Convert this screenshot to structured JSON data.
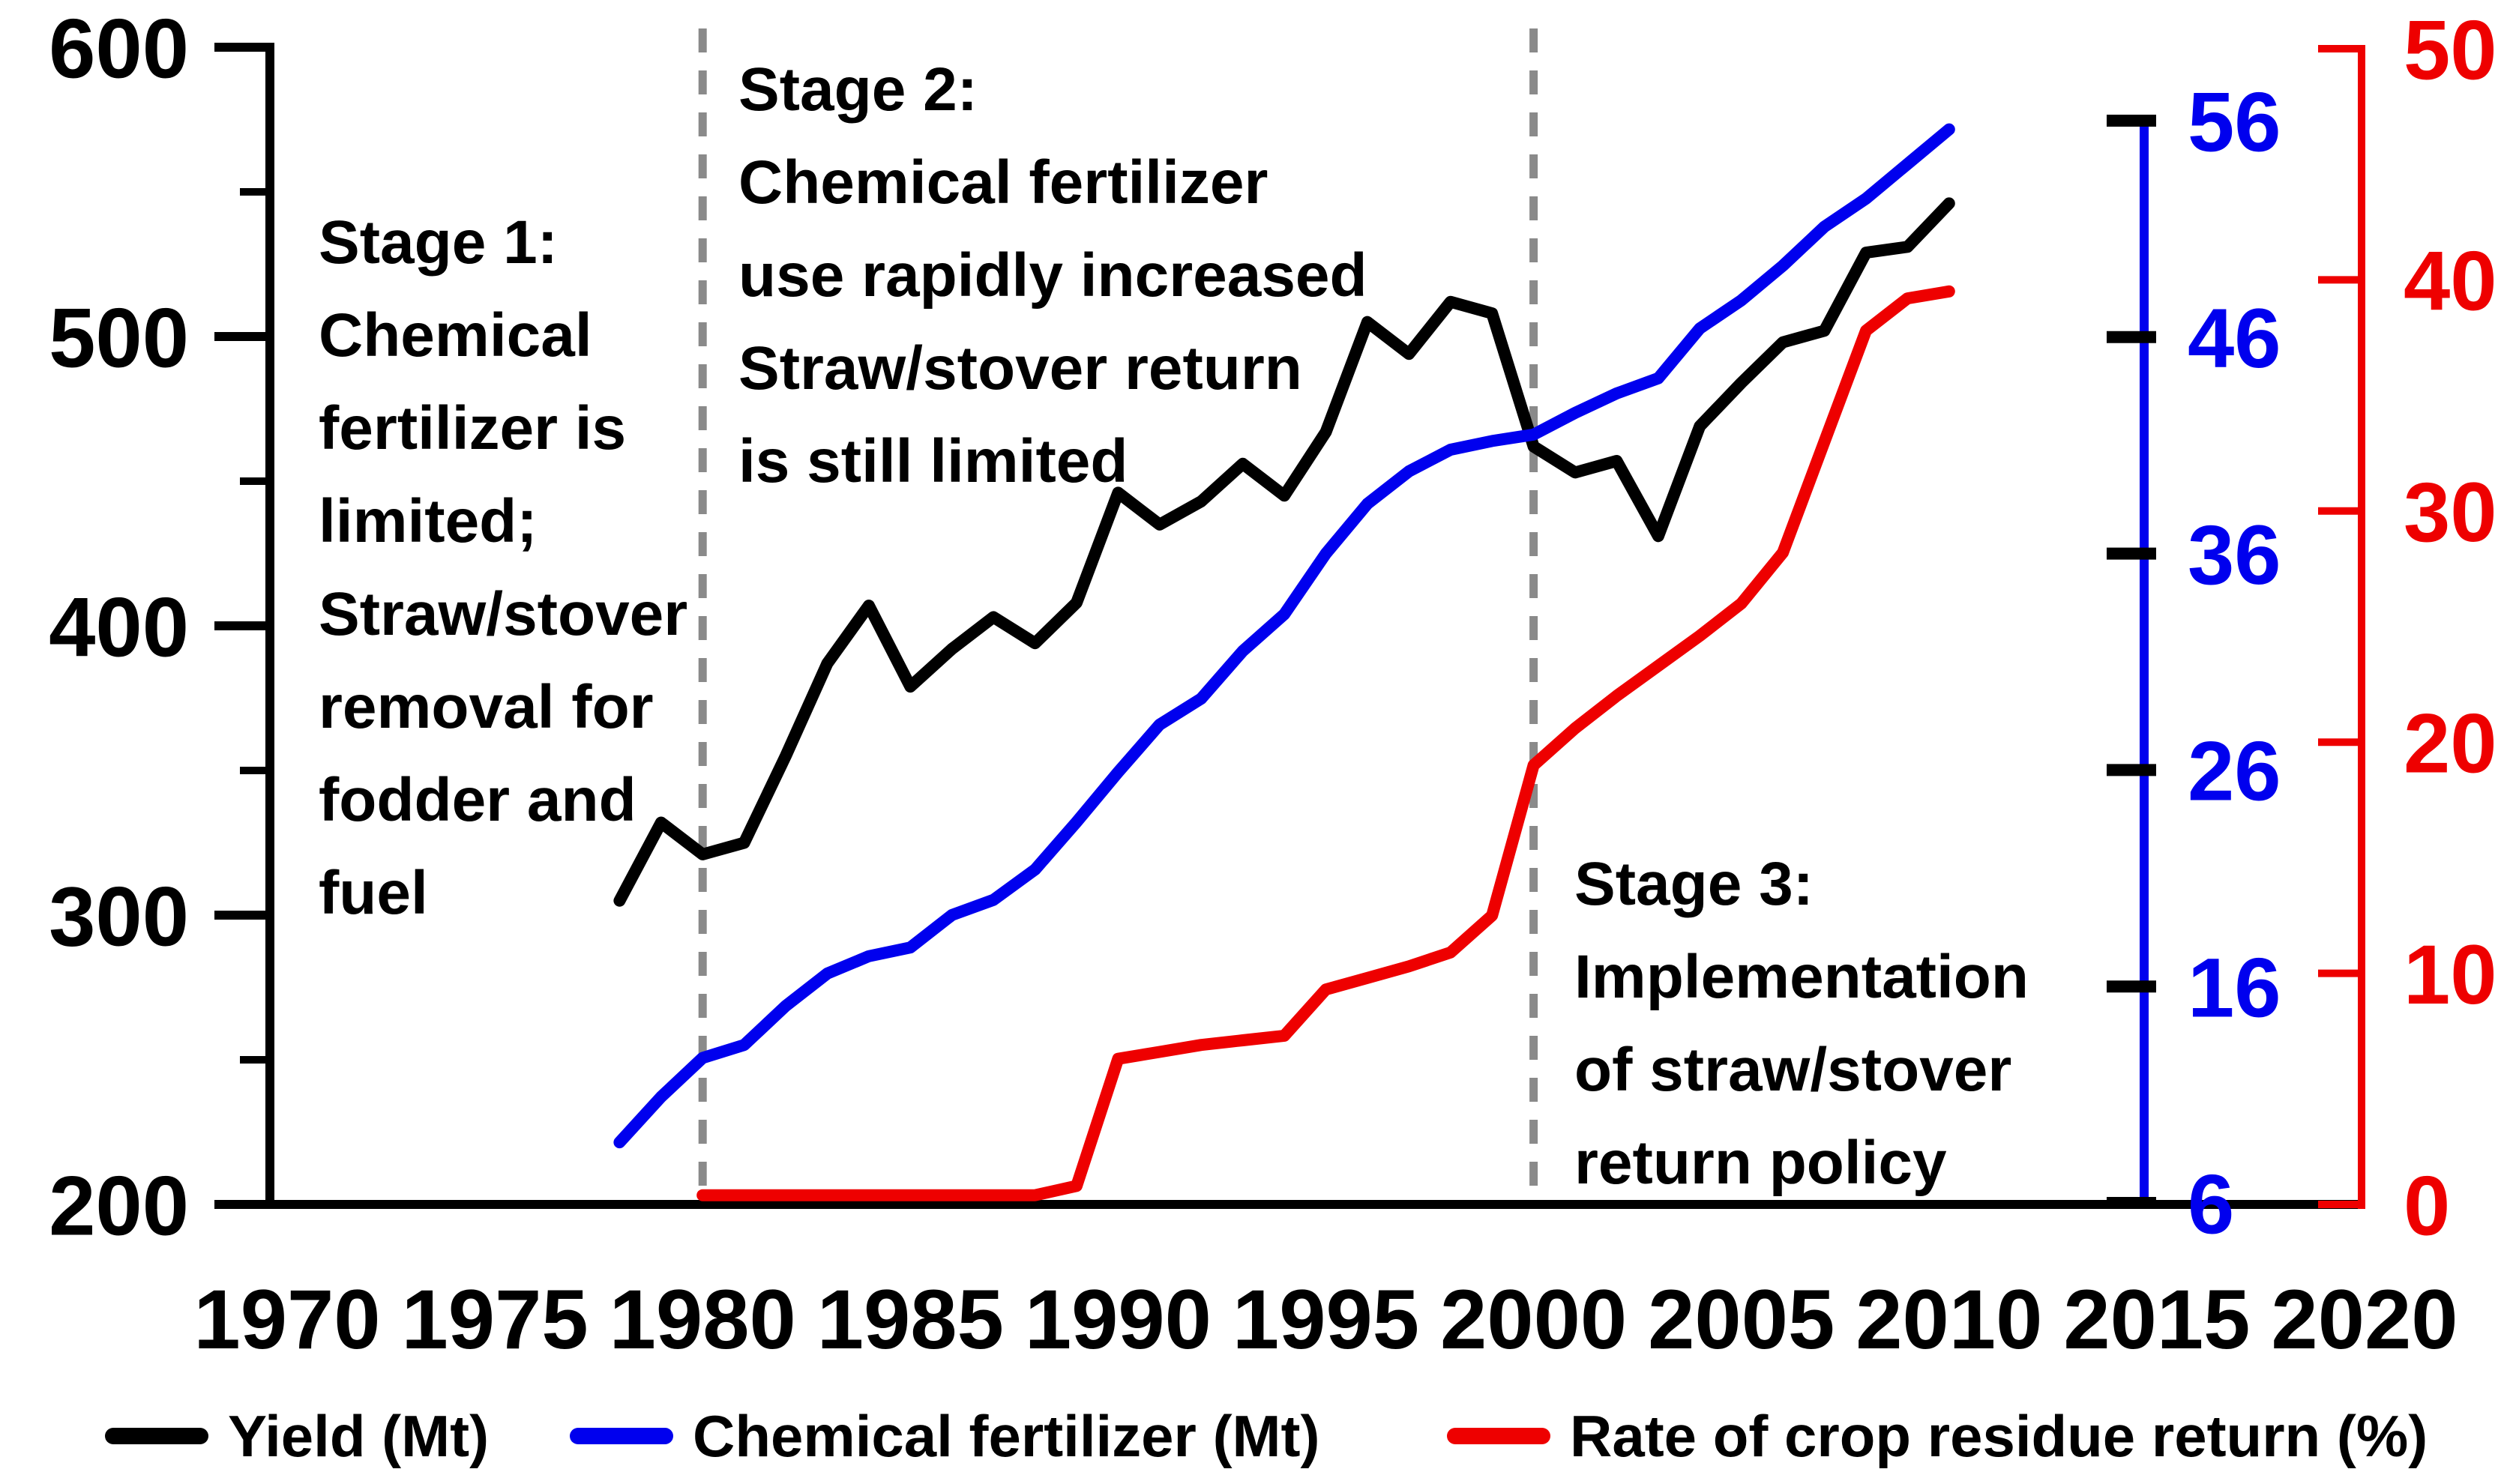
{
  "chart_data": {
    "type": "line",
    "title": "",
    "grid": false,
    "legend_position": "bottom",
    "stage_boundaries": [
      1980,
      2000
    ],
    "stage_line_color": "#8A8A8A",
    "axes": {
      "x": {
        "range": [
          1970,
          2020
        ],
        "ticks": [
          1970,
          1975,
          1980,
          1985,
          1990,
          1995,
          2000,
          2005,
          2010,
          2015,
          2020
        ],
        "color": "#000000"
      },
      "left": {
        "range": [
          200,
          600
        ],
        "ticks": [
          200,
          300,
          400,
          500,
          600
        ],
        "minor_ticks": [
          250,
          350,
          450,
          550
        ],
        "color": "#000000"
      },
      "blue": {
        "range": [
          6,
          56
        ],
        "ticks": [
          6,
          16,
          26,
          36,
          46,
          56
        ],
        "color": "#0000EE",
        "tick_color": "#000000",
        "position_year": 2015
      },
      "red": {
        "range": [
          0,
          50
        ],
        "ticks": [
          0,
          10,
          20,
          30,
          40,
          50
        ],
        "color": "#EE0000",
        "position_year": 2020
      }
    },
    "series": [
      {
        "name": "Yield (Mt)",
        "axis": "left",
        "color": "#000000",
        "x": [
          1978,
          1979,
          1980,
          1981,
          1982,
          1983,
          1984,
          1985,
          1986,
          1987,
          1988,
          1989,
          1990,
          1991,
          1992,
          1993,
          1994,
          1995,
          1996,
          1997,
          1998,
          1999,
          2000,
          2001,
          2002,
          2003,
          2004,
          2005,
          2006,
          2007,
          2008,
          2009,
          2010
        ],
        "values": [
          305,
          332,
          321,
          325,
          355,
          387,
          407,
          379,
          392,
          403,
          394,
          408,
          446,
          435,
          443,
          456,
          445,
          467,
          505,
          494,
          512,
          508,
          462,
          453,
          457,
          431,
          469,
          484,
          498,
          502,
          529,
          531,
          546
        ]
      },
      {
        "name": "Chemical fertilizer (Mt)",
        "axis": "blue",
        "color": "#0000EE",
        "x": [
          1978,
          1979,
          1980,
          1981,
          1982,
          1983,
          1984,
          1985,
          1986,
          1987,
          1988,
          1989,
          1990,
          1991,
          1992,
          1993,
          1994,
          1995,
          1996,
          1997,
          1998,
          1999,
          2000,
          2001,
          2002,
          2003,
          2004,
          2005,
          2006,
          2007,
          2008,
          2009,
          2010
        ],
        "values": [
          8.8,
          10.9,
          12.7,
          13.3,
          15.1,
          16.6,
          17.4,
          17.8,
          19.3,
          20,
          21.4,
          23.6,
          25.9,
          28.1,
          29.3,
          31.5,
          33.2,
          36,
          38.3,
          39.8,
          40.8,
          41.2,
          41.5,
          42.5,
          43.4,
          44.1,
          46.4,
          47.7,
          49.3,
          51.1,
          52.4,
          54,
          55.6
        ]
      },
      {
        "name": "Rate of crop residue return (%)",
        "axis": "red",
        "color": "#EE0000",
        "x": [
          1980,
          1981,
          1982,
          1983,
          1984,
          1985,
          1986,
          1987,
          1988,
          1989,
          1990,
          1991,
          1992,
          1993,
          1994,
          1995,
          1996,
          1997,
          1998,
          1999,
          2000,
          2001,
          2002,
          2003,
          2004,
          2005,
          2006,
          2007,
          2008,
          2009,
          2010
        ],
        "values": [
          0.4,
          0.4,
          0.4,
          0.4,
          0.4,
          0.4,
          0.4,
          0.4,
          0.4,
          0.8,
          6.3,
          6.6,
          6.9,
          7.1,
          7.3,
          9.3,
          9.8,
          10.3,
          10.9,
          12.5,
          19,
          20.6,
          22,
          23.3,
          24.6,
          26,
          28.2,
          33,
          37.8,
          39.2,
          39.5
        ]
      }
    ]
  },
  "annotations": {
    "stage1": {
      "lines": [
        "Stage 1:",
        "Chemical",
        "fertilizer is",
        "limited;",
        "Straw/stover",
        "removal for",
        "fodder and",
        "fuel"
      ]
    },
    "stage2": {
      "lines": [
        "Stage 2:",
        "Chemical fertilizer",
        "use rapidly increased",
        "Straw/stover return",
        "is still limited"
      ]
    },
    "stage3": {
      "lines": [
        "Stage 3:",
        "Implementation",
        "of straw/stover",
        "return policy"
      ]
    }
  },
  "legend": {
    "items": [
      {
        "label": "Yield (Mt)",
        "color": "#000000"
      },
      {
        "label": "Chemical fertilizer (Mt)",
        "color": "#0000EE"
      },
      {
        "label": "Rate of crop residue return (%)",
        "color": "#EE0000"
      }
    ]
  }
}
